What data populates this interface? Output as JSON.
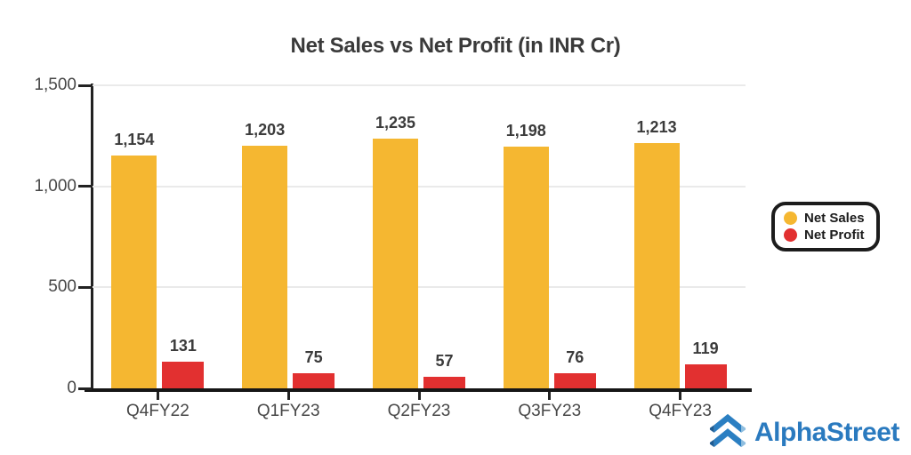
{
  "chart_data": {
    "type": "bar",
    "title": "Net Sales vs Net Profit (in INR Cr)",
    "categories": [
      "Q4FY22",
      "Q1FY23",
      "Q2FY23",
      "Q3FY23",
      "Q4FY23"
    ],
    "series": [
      {
        "name": "Net Sales",
        "color": "#F5B731",
        "values": [
          1154,
          1203,
          1235,
          1198,
          1213
        ],
        "labels": [
          "1,154",
          "1,203",
          "1,235",
          "1,198",
          "1,213"
        ]
      },
      {
        "name": "Net Profit",
        "color": "#E23030",
        "values": [
          131,
          75,
          57,
          76,
          119
        ],
        "labels": [
          "131",
          "75",
          "57",
          "76",
          "119"
        ]
      }
    ],
    "ylim": [
      0,
      1500
    ],
    "yticks": [
      {
        "value": 0,
        "label": "0"
      },
      {
        "value": 500,
        "label": "500"
      },
      {
        "value": 1000,
        "label": "1,000"
      },
      {
        "value": 1500,
        "label": "1,500"
      }
    ],
    "grid": true,
    "legend_position": "right"
  },
  "branding": {
    "name": "AlphaStreet",
    "color": "#2A7ABF",
    "icon": "alphastreet-double-chevron"
  }
}
